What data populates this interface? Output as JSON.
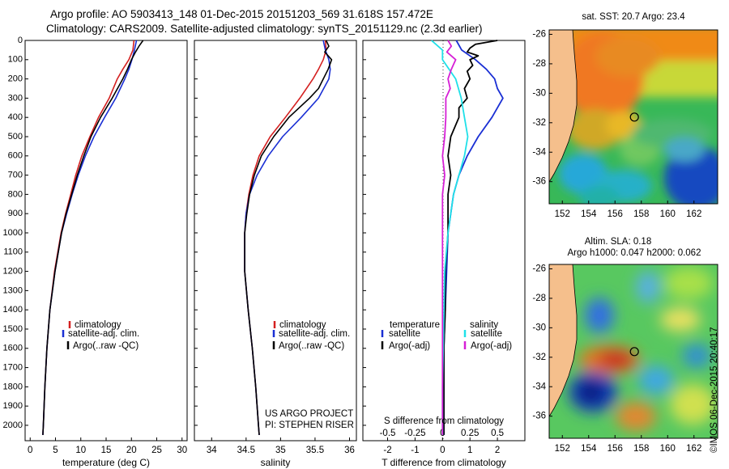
{
  "header": {
    "line1": "Argo profile: AO 5903413_148 01-Dec-2015 20151203_569 31.618S 157.472E",
    "line2": "Climatology: CARS2009. Satellite-adjusted climatology: synTS_20151129.nc (2.3d earlier)"
  },
  "credit": "©IMOS 06-Dec-2015 20:40:17",
  "colors": {
    "climatology": "#d42020",
    "satellite": "#1a2fd4",
    "argo": "#000000",
    "adj": "#d61fd6",
    "cyan": "#1fe0e8",
    "land": "#f5bf8c"
  },
  "chart_data": [
    {
      "type": "line",
      "name": "temperature profile",
      "xlabel": "temperature (deg C)",
      "ylabel": "",
      "xlim": [
        -1,
        31
      ],
      "ylim": [
        2080,
        0
      ],
      "x_ticks": [
        0,
        5,
        10,
        15,
        20,
        25,
        30
      ],
      "y_ticks": [
        0,
        100,
        200,
        300,
        400,
        500,
        600,
        700,
        800,
        900,
        1000,
        1100,
        1200,
        1300,
        1400,
        1500,
        1600,
        1700,
        1800,
        1900,
        2000
      ],
      "legend": [
        "climatology",
        "satellite-adj. clim.",
        "Argo(..raw -QC)"
      ],
      "legend_position": "lower-center",
      "series": [
        {
          "name": "climatology",
          "depth": [
            0,
            50,
            100,
            150,
            200,
            300,
            400,
            500,
            600,
            700,
            800,
            900,
            1000,
            1200,
            1400,
            1600,
            1800,
            2000,
            2050
          ],
          "values": [
            20.5,
            20.3,
            19.5,
            18.3,
            17.2,
            15.6,
            13.5,
            11.8,
            10.2,
            9.0,
            8.0,
            7.0,
            6.1,
            4.8,
            3.9,
            3.3,
            2.9,
            2.6,
            2.5
          ]
        },
        {
          "name": "satellite-adj. clim.",
          "depth": [
            0,
            50,
            100,
            150,
            200,
            300,
            400,
            500,
            600,
            700,
            800,
            900,
            1000,
            1200,
            1400,
            1600,
            1800,
            2000,
            2050
          ],
          "values": [
            21.0,
            20.6,
            20.1,
            19.5,
            18.7,
            16.9,
            14.7,
            12.6,
            10.9,
            9.5,
            8.3,
            7.2,
            6.2,
            4.9,
            3.9,
            3.3,
            2.9,
            2.6,
            2.5
          ]
        },
        {
          "name": "Argo(..raw -QC)",
          "depth": [
            0,
            30,
            60,
            100,
            150,
            200,
            300,
            400,
            500,
            600,
            700,
            800,
            900,
            1000,
            1200,
            1400,
            1600,
            1800,
            2000,
            2050
          ],
          "values": [
            22.3,
            21.5,
            20.8,
            20.0,
            19.2,
            18.3,
            16.2,
            13.9,
            12.0,
            10.6,
            9.3,
            8.2,
            7.1,
            6.2,
            4.9,
            3.9,
            3.3,
            2.9,
            2.6,
            2.5
          ]
        }
      ]
    },
    {
      "type": "line",
      "name": "salinity profile",
      "xlabel": "salinity",
      "xlim": [
        33.75,
        36.1
      ],
      "ylim": [
        2080,
        0
      ],
      "x_ticks": [
        34,
        34.5,
        35,
        35.5,
        36
      ],
      "legend": [
        "climatology",
        "satellite-adj. clim.",
        "Argo(..raw -QC)"
      ],
      "legend_position": "lower-right",
      "annotation": [
        "US ARGO PROJECT",
        "PI: STEPHEN RISER"
      ],
      "series": [
        {
          "name": "climatology",
          "depth": [
            0,
            50,
            100,
            150,
            200,
            300,
            400,
            500,
            600,
            700,
            800,
            900,
            1000,
            1200,
            1400,
            1600,
            1800,
            2000,
            2050
          ],
          "values": [
            35.65,
            35.66,
            35.62,
            35.55,
            35.47,
            35.28,
            35.07,
            34.85,
            34.69,
            34.6,
            34.54,
            34.5,
            34.48,
            34.48,
            34.53,
            34.59,
            34.64,
            34.68,
            34.69
          ]
        },
        {
          "name": "satellite-adj. clim.",
          "depth": [
            0,
            50,
            100,
            150,
            200,
            300,
            400,
            500,
            600,
            700,
            800,
            900,
            1000,
            1200,
            1400,
            1600,
            1800,
            2000,
            2050
          ],
          "values": [
            35.62,
            35.65,
            35.7,
            35.72,
            35.7,
            35.55,
            35.3,
            35.03,
            34.82,
            34.66,
            34.55,
            34.5,
            34.48,
            34.48,
            34.53,
            34.59,
            34.64,
            34.68,
            34.69
          ]
        },
        {
          "name": "Argo(..raw -QC)",
          "depth": [
            0,
            30,
            60,
            100,
            150,
            200,
            250,
            300,
            400,
            500,
            600,
            700,
            800,
            900,
            1000,
            1200,
            1400,
            1600,
            1800,
            2000,
            2050
          ],
          "values": [
            35.66,
            35.7,
            35.64,
            35.74,
            35.69,
            35.62,
            35.55,
            35.42,
            35.12,
            34.9,
            34.72,
            34.62,
            34.55,
            34.51,
            34.48,
            34.48,
            34.53,
            34.59,
            34.64,
            34.68,
            34.69
          ]
        }
      ]
    },
    {
      "type": "line",
      "name": "difference from climatology",
      "xlabel": "T difference from climatology",
      "top_axis_label": "S difference from climatology",
      "xlim": [
        -2.9,
        3.0
      ],
      "ylim": [
        2080,
        0
      ],
      "x_ticks": [
        -2,
        -1,
        0,
        1,
        2
      ],
      "top_ticks": [
        -0.5,
        -0.25,
        0,
        0.25,
        0.5
      ],
      "legend_temperature": [
        "temperature",
        "satellite",
        "Argo(-adj)"
      ],
      "legend_salinity": [
        "salinity",
        "satellite",
        "Argo(-adj)"
      ],
      "series": [
        {
          "name": "temperature satellite",
          "depth": [
            0,
            50,
            100,
            150,
            200,
            250,
            300,
            400,
            500,
            600,
            700,
            800,
            900,
            1000,
            1200,
            1400,
            1600,
            1800,
            2000,
            2050
          ],
          "values": [
            0.5,
            0.7,
            1.2,
            1.6,
            1.9,
            2.0,
            2.2,
            1.8,
            1.3,
            0.9,
            0.6,
            0.4,
            0.3,
            0.2,
            0.15,
            0.1,
            0.05,
            0.05,
            0.05,
            0.05
          ]
        },
        {
          "name": "temperature Argo(-adj)",
          "depth": [
            0,
            20,
            40,
            60,
            80,
            100,
            130,
            160,
            200,
            250,
            300,
            350,
            400,
            500,
            600,
            700,
            800,
            900,
            1000,
            1200,
            1400,
            1600,
            1800,
            2000,
            2050
          ],
          "values": [
            2.0,
            1.2,
            1.0,
            0.9,
            1.3,
            1.0,
            1.1,
            0.9,
            1.0,
            0.8,
            0.9,
            0.6,
            0.6,
            0.3,
            0.2,
            0.3,
            0.2,
            0.2,
            0.2,
            0.1,
            0.1,
            0.05,
            0.05,
            0.05,
            0.05
          ]
        },
        {
          "name": "salinity satellite",
          "depth": [
            0,
            50,
            100,
            200,
            300,
            400,
            500,
            600,
            700,
            800,
            1000,
            1200,
            1500,
            1800,
            2050
          ],
          "values": [
            -0.1,
            0.0,
            0.0,
            0.12,
            0.17,
            0.2,
            0.23,
            0.2,
            0.15,
            0.1,
            0.05,
            0.02,
            0.01,
            0.0,
            0.0
          ]
        },
        {
          "name": "salinity Argo(-adj)",
          "depth": [
            0,
            30,
            60,
            100,
            150,
            200,
            250,
            300,
            400,
            500,
            600,
            700,
            800,
            1000,
            1200,
            1500,
            1800,
            2050
          ],
          "values": [
            0.05,
            0.08,
            0.04,
            0.12,
            0.08,
            0.05,
            0.07,
            0.03,
            0.03,
            0.02,
            0.0,
            0.02,
            0.0,
            0.0,
            0.0,
            0.0,
            0.0,
            0.0
          ]
        }
      ]
    },
    {
      "type": "heatmap",
      "name": "sat SST map",
      "title": "sat. SST: 20.7 Argo: 23.4",
      "x_ticks": [
        152,
        154,
        156,
        158,
        160,
        162
      ],
      "y_ticks": [
        -26,
        -28,
        -30,
        -32,
        -34,
        -36
      ],
      "xlim": [
        151,
        163.8
      ],
      "ylim": [
        -37.5,
        -25.7
      ],
      "argo_marker": {
        "lon": 157.472,
        "lat": -31.618
      }
    },
    {
      "type": "heatmap",
      "name": "SLA map",
      "title": [
        "Altim. SLA: 0.18",
        "Argo h1000: 0.047 h2000: 0.062"
      ],
      "x_ticks": [
        152,
        154,
        156,
        158,
        160,
        162
      ],
      "y_ticks": [
        -26,
        -28,
        -30,
        -32,
        -34,
        -36
      ],
      "xlim": [
        151,
        163.8
      ],
      "ylim": [
        -37.5,
        -25.7
      ],
      "argo_marker": {
        "lon": 157.472,
        "lat": -31.618
      }
    }
  ]
}
